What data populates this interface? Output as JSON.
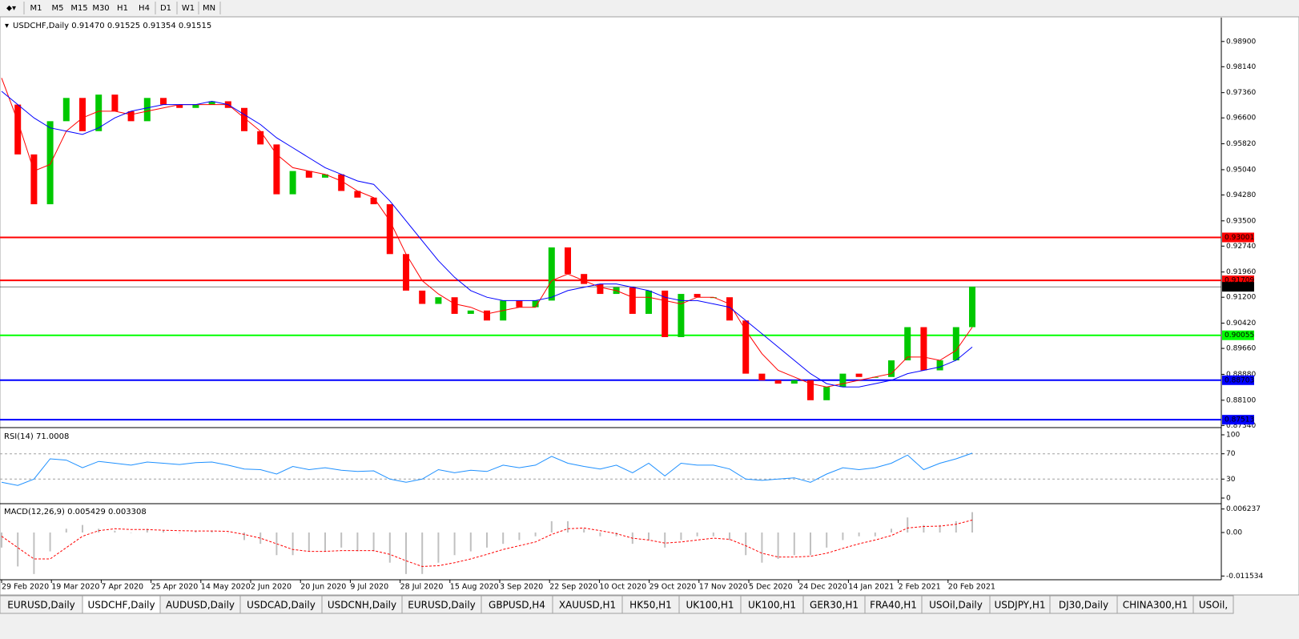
{
  "toolbar": [
    "M1",
    "M5",
    "M15",
    "M30",
    "H1",
    "H4",
    "D1",
    "W1",
    "MN"
  ],
  "tabs": [
    "EURUSD,Daily",
    "USDCHF,Daily",
    "AUDUSD,Daily",
    "USDCAD,Daily",
    "USDCNH,Daily",
    "EURUSD,Daily",
    "GBPUSD,H4",
    "XAUUSD,H1",
    "HK50,H1",
    "UK100,H1",
    "UK100,H1",
    "GER30,H1",
    "FRA40,H1",
    "USOil,Daily",
    "USDJPY,H1",
    "DJ30,Daily",
    "CHINA300,H1",
    "USOil,"
  ],
  "chart_data": [
    {
      "type": "candlestick",
      "title": "USDCHF,Daily  0.91470 0.91525 0.91354 0.91515",
      "ylim": [
        0.873,
        0.9957
      ],
      "yticks": [
        {
          "value": 0.989,
          "label": "0.98900"
        },
        {
          "value": 0.9814,
          "label": "0.98140"
        },
        {
          "value": 0.9736,
          "label": "0.97360"
        },
        {
          "value": 0.966,
          "label": "0.96600"
        },
        {
          "value": 0.9582,
          "label": "0.95820"
        },
        {
          "value": 0.9504,
          "label": "0.95040"
        },
        {
          "value": 0.9428,
          "label": "0.94280"
        },
        {
          "value": 0.935,
          "label": "0.93500"
        },
        {
          "value": 0.9274,
          "label": "0.92740"
        },
        {
          "value": 0.9196,
          "label": "0.91960"
        },
        {
          "value": 0.912,
          "label": "0.91200"
        },
        {
          "value": 0.9042,
          "label": "0.90420"
        },
        {
          "value": 0.8966,
          "label": "0.89660"
        },
        {
          "value": 0.8888,
          "label": "0.88880"
        },
        {
          "value": 0.881,
          "label": "0.88100"
        },
        {
          "value": 0.8734,
          "label": "0.87340"
        }
      ],
      "levels": [
        {
          "value": 0.93001,
          "label": "0.93001",
          "color": "#ff0000"
        },
        {
          "value": 0.91709,
          "label": "0.91709",
          "color": "#ff0000"
        },
        {
          "value": 0.91515,
          "label": "0.91515",
          "color": "#000000"
        },
        {
          "value": 0.90055,
          "label": "0.90055",
          "color": "#00ff00"
        },
        {
          "value": 0.88703,
          "label": "0.88703",
          "color": "#0000ff"
        },
        {
          "value": 0.87513,
          "label": "0.87513",
          "color": "#0000ff"
        }
      ],
      "x_labels": [
        "29 Feb 2020",
        "19 Mar 2020",
        "7 Apr 2020",
        "25 Apr 2020",
        "14 May 2020",
        "2 Jun 2020",
        "20 Jun 2020",
        "9 Jul 2020",
        "28 Jul 2020",
        "15 Aug 2020",
        "3 Sep 2020",
        "22 Sep 2020",
        "10 Oct 2020",
        "29 Oct 2020",
        "17 Nov 2020",
        "5 Dec 2020",
        "24 Dec 2020",
        "14 Jan 2021",
        "2 Feb 2021",
        "20 Feb 2021"
      ],
      "series": [
        {
          "color": "#00c800",
          "down_color": "#ff0000",
          "values": [
            0.97,
            0.955,
            0.94,
            0.965,
            0.972,
            0.962,
            0.973,
            0.968,
            0.965,
            0.972,
            0.97,
            0.969,
            0.97,
            0.971,
            0.969,
            0.962,
            0.958,
            0.943,
            0.95,
            0.948,
            0.949,
            0.944,
            0.942,
            0.94,
            0.925,
            0.914,
            0.91,
            0.912,
            0.907,
            0.908,
            0.905,
            0.911,
            0.909,
            0.911,
            0.927,
            0.919,
            0.916,
            0.913,
            0.915,
            0.907,
            0.914,
            0.9,
            0.913,
            0.912,
            0.912,
            0.905,
            0.889,
            0.887,
            0.886,
            0.887,
            0.881,
            0.885,
            0.889,
            0.888,
            0.888,
            0.893,
            0.903,
            0.89,
            0.893,
            0.903,
            0.9152
          ]
        },
        {
          "color": "#ff0000",
          "values": [
            0.978,
            0.965,
            0.95,
            0.952,
            0.962,
            0.966,
            0.968,
            0.968,
            0.967,
            0.968,
            0.969,
            0.97,
            0.97,
            0.97,
            0.97,
            0.966,
            0.962,
            0.955,
            0.951,
            0.95,
            0.949,
            0.947,
            0.944,
            0.942,
            0.935,
            0.925,
            0.917,
            0.913,
            0.91,
            0.909,
            0.907,
            0.908,
            0.909,
            0.909,
            0.917,
            0.919,
            0.917,
            0.915,
            0.914,
            0.912,
            0.912,
            0.911,
            0.91,
            0.912,
            0.912,
            0.91,
            0.902,
            0.895,
            0.89,
            0.888,
            0.886,
            0.885,
            0.886,
            0.887,
            0.888,
            0.889,
            0.894,
            0.894,
            0.893,
            0.896,
            0.903
          ]
        },
        {
          "color": "#0000ff",
          "values": [
            0.974,
            0.97,
            0.966,
            0.963,
            0.962,
            0.961,
            0.963,
            0.966,
            0.968,
            0.969,
            0.97,
            0.97,
            0.97,
            0.971,
            0.97,
            0.967,
            0.964,
            0.96,
            0.957,
            0.954,
            0.951,
            0.949,
            0.947,
            0.946,
            0.941,
            0.935,
            0.929,
            0.923,
            0.918,
            0.914,
            0.912,
            0.911,
            0.911,
            0.911,
            0.912,
            0.914,
            0.915,
            0.916,
            0.916,
            0.915,
            0.914,
            0.912,
            0.911,
            0.911,
            0.91,
            0.909,
            0.905,
            0.901,
            0.897,
            0.893,
            0.889,
            0.886,
            0.885,
            0.885,
            0.886,
            0.887,
            0.889,
            0.89,
            0.891,
            0.893,
            0.897
          ]
        }
      ]
    },
    {
      "type": "line",
      "title": "RSI(14) 71.0008",
      "ylim": [
        0,
        100
      ],
      "yticks": [
        100,
        70,
        30,
        0
      ],
      "levels": [
        70,
        30
      ],
      "series": [
        {
          "color": "#1e90ff",
          "values": [
            25,
            20,
            30,
            62,
            60,
            48,
            58,
            55,
            52,
            57,
            55,
            53,
            56,
            57,
            52,
            46,
            45,
            38,
            50,
            45,
            48,
            44,
            42,
            43,
            30,
            25,
            30,
            45,
            40,
            44,
            42,
            52,
            48,
            52,
            66,
            55,
            50,
            46,
            52,
            40,
            55,
            35,
            55,
            52,
            52,
            46,
            30,
            28,
            30,
            32,
            25,
            38,
            48,
            45,
            48,
            55,
            68,
            45,
            55,
            62,
            71
          ]
        }
      ]
    },
    {
      "type": "macd",
      "title": "MACD(12,26,9) 0.005429 0.003308",
      "ylim": [
        -0.0121,
        0.0068
      ],
      "yticks": [
        {
          "value": 0.006237,
          "label": "0.006237"
        },
        {
          "value": 0,
          "label": "0.00"
        },
        {
          "value": -0.011534,
          "label": "-0.011534"
        }
      ],
      "series": [
        {
          "color": "#c0c0c0",
          "values": [
            -0.004,
            -0.009,
            -0.011,
            -0.005,
            0.001,
            0.002,
            0.001,
            0.0005,
            0,
            0.001,
            0.0005,
            0,
            0.0003,
            0.0005,
            0,
            -0.002,
            -0.003,
            -0.006,
            -0.006,
            -0.005,
            -0.005,
            -0.004,
            -0.005,
            -0.005,
            -0.008,
            -0.011,
            -0.011,
            -0.008,
            -0.006,
            -0.005,
            -0.004,
            -0.003,
            -0.002,
            -0.001,
            0.003,
            0.003,
            0.001,
            -0.001,
            -0.001,
            -0.003,
            -0.002,
            -0.004,
            -0.002,
            -0.001,
            -0.001,
            -0.002,
            -0.006,
            -0.008,
            -0.007,
            -0.006,
            -0.006,
            -0.004,
            -0.002,
            -0.001,
            -0.001,
            0.001,
            0.004,
            0.002,
            0.002,
            0.003,
            0.0054
          ]
        },
        {
          "color": "#ff0000",
          "values": [
            -0.001,
            -0.004,
            -0.007,
            -0.007,
            -0.004,
            -0.001,
            0.0005,
            0.001,
            0.0008,
            0.0008,
            0.0006,
            0.0005,
            0.0004,
            0.0004,
            0.0003,
            -0.0005,
            -0.0015,
            -0.003,
            -0.0045,
            -0.005,
            -0.005,
            -0.0048,
            -0.0048,
            -0.0048,
            -0.0058,
            -0.0075,
            -0.009,
            -0.0088,
            -0.008,
            -0.007,
            -0.0058,
            -0.0045,
            -0.0035,
            -0.0025,
            -0.0005,
            0.001,
            0.0012,
            0.0005,
            -0.0003,
            -0.0015,
            -0.002,
            -0.0028,
            -0.0025,
            -0.002,
            -0.0015,
            -0.0018,
            -0.0035,
            -0.0055,
            -0.0065,
            -0.0065,
            -0.0063,
            -0.0055,
            -0.0042,
            -0.003,
            -0.002,
            -0.0008,
            0.0012,
            0.0016,
            0.0017,
            0.0022,
            0.0033
          ]
        }
      ]
    }
  ]
}
